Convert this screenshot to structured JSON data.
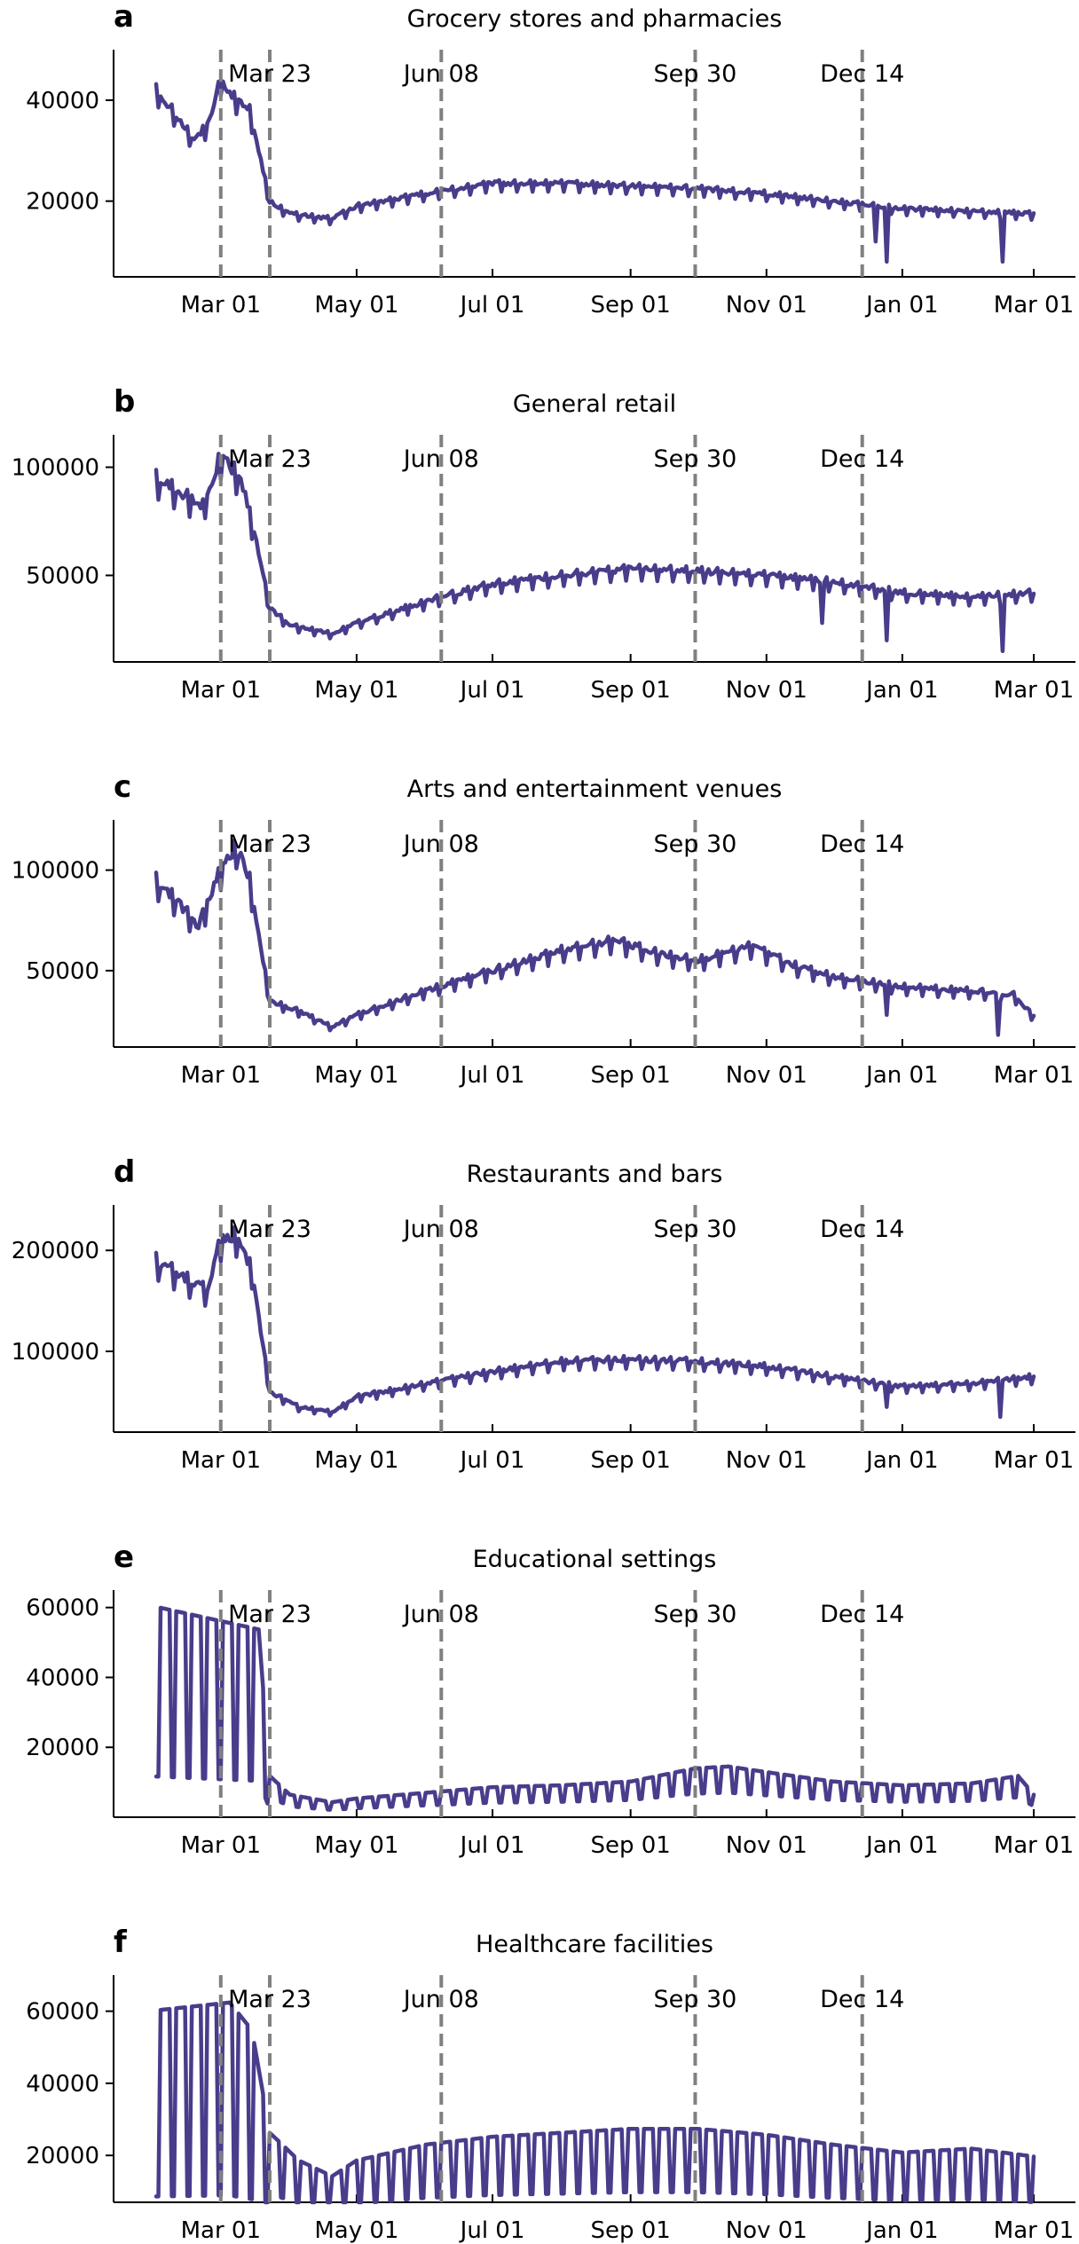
{
  "chart_data": [
    {
      "type": "line",
      "panel": "a",
      "title": "Grocery stores and pharmacies",
      "xlabel": "",
      "ylabel": "",
      "x_range": [
        "2020-02-01",
        "2021-03-01"
      ],
      "x_ticks": [
        "Mar 01",
        "May 01",
        "Jul 01",
        "Sep 01",
        "Nov 01",
        "Jan 01",
        "Mar 01"
      ],
      "x_tick_dates": [
        "2020-03-01",
        "2020-05-01",
        "2020-07-01",
        "2020-09-01",
        "2020-11-01",
        "2021-01-01",
        "2021-03-01"
      ],
      "ylim": [
        5000,
        50000
      ],
      "y_ticks": [
        20000,
        40000
      ],
      "events": [
        {
          "label": "",
          "date": "2020-03-01"
        },
        {
          "label": "Mar 23",
          "date": "2020-03-23"
        },
        {
          "label": "Jun 08",
          "date": "2020-06-08"
        },
        {
          "label": "Sep 30",
          "date": "2020-09-30"
        },
        {
          "label": "Dec 14",
          "date": "2020-12-14"
        }
      ],
      "grid": false,
      "color": "#483d8b",
      "anchors": [
        [
          "2020-02-01",
          42000
        ],
        [
          "2020-02-10",
          37000
        ],
        [
          "2020-02-18",
          32000
        ],
        [
          "2020-02-24",
          35000
        ],
        [
          "2020-03-01",
          44000
        ],
        [
          "2020-03-08",
          40000
        ],
        [
          "2020-03-14",
          38000
        ],
        [
          "2020-03-23",
          20000
        ],
        [
          "2020-04-01",
          17500
        ],
        [
          "2020-04-20",
          16500
        ],
        [
          "2020-05-01",
          19000
        ],
        [
          "2020-06-01",
          21500
        ],
        [
          "2020-07-01",
          23500
        ],
        [
          "2020-08-01",
          23500
        ],
        [
          "2020-09-01",
          23000
        ],
        [
          "2020-10-01",
          22500
        ],
        [
          "2020-11-01",
          21500
        ],
        [
          "2020-12-01",
          20000
        ],
        [
          "2021-01-01",
          18500
        ],
        [
          "2021-02-01",
          18000
        ],
        [
          "2021-03-01",
          17500
        ]
      ],
      "weekly_amplitude": 0.07,
      "dips": [
        [
          "2020-12-25",
          8000
        ],
        [
          "2021-02-15",
          8000
        ],
        [
          "2020-12-20",
          12000
        ]
      ]
    },
    {
      "type": "line",
      "panel": "b",
      "title": "General retail",
      "xlabel": "",
      "ylabel": "",
      "x_range": [
        "2020-02-01",
        "2021-03-01"
      ],
      "x_ticks": [
        "Mar 01",
        "May 01",
        "Jul 01",
        "Sep 01",
        "Nov 01",
        "Jan 01",
        "Mar 01"
      ],
      "x_tick_dates": [
        "2020-03-01",
        "2020-05-01",
        "2020-07-01",
        "2020-09-01",
        "2020-11-01",
        "2021-01-01",
        "2021-03-01"
      ],
      "ylim": [
        10000,
        115000
      ],
      "y_ticks": [
        50000,
        100000
      ],
      "events": [
        {
          "label": "",
          "date": "2020-03-01"
        },
        {
          "label": "Mar 23",
          "date": "2020-03-23"
        },
        {
          "label": "Jun 08",
          "date": "2020-06-08"
        },
        {
          "label": "Sep 30",
          "date": "2020-09-30"
        },
        {
          "label": "Dec 14",
          "date": "2020-12-14"
        }
      ],
      "grid": false,
      "color": "#483d8b",
      "anchors": [
        [
          "2020-02-01",
          95000
        ],
        [
          "2020-02-12",
          88000
        ],
        [
          "2020-02-22",
          82000
        ],
        [
          "2020-03-01",
          105000
        ],
        [
          "2020-03-10",
          95000
        ],
        [
          "2020-03-16",
          70000
        ],
        [
          "2020-03-23",
          35000
        ],
        [
          "2020-04-01",
          27000
        ],
        [
          "2020-04-20",
          23000
        ],
        [
          "2020-05-01",
          28000
        ],
        [
          "2020-05-20",
          34000
        ],
        [
          "2020-06-08",
          40000
        ],
        [
          "2020-07-01",
          46000
        ],
        [
          "2020-08-01",
          50000
        ],
        [
          "2020-09-01",
          53000
        ],
        [
          "2020-10-01",
          52000
        ],
        [
          "2020-11-01",
          50000
        ],
        [
          "2020-12-01",
          47000
        ],
        [
          "2021-01-01",
          42000
        ],
        [
          "2021-02-01",
          40000
        ],
        [
          "2021-03-01",
          42000
        ]
      ],
      "weekly_amplitude": 0.1,
      "dips": [
        [
          "2020-11-26",
          28000
        ],
        [
          "2020-12-25",
          20000
        ],
        [
          "2021-02-15",
          15000
        ]
      ]
    },
    {
      "type": "line",
      "panel": "c",
      "title": "Arts and entertainment venues",
      "xlabel": "",
      "ylabel": "",
      "x_range": [
        "2020-02-01",
        "2021-03-01"
      ],
      "x_ticks": [
        "Mar 01",
        "May 01",
        "Jul 01",
        "Sep 01",
        "Nov 01",
        "Jan 01",
        "Mar 01"
      ],
      "x_tick_dates": [
        "2020-03-01",
        "2020-05-01",
        "2020-07-01",
        "2020-09-01",
        "2020-11-01",
        "2021-01-01",
        "2021-03-01"
      ],
      "ylim": [
        12000,
        125000
      ],
      "y_ticks": [
        50000,
        100000
      ],
      "events": [
        {
          "label": "",
          "date": "2020-03-01"
        },
        {
          "label": "Mar 23",
          "date": "2020-03-23"
        },
        {
          "label": "Jun 08",
          "date": "2020-06-08"
        },
        {
          "label": "Sep 30",
          "date": "2020-09-30"
        },
        {
          "label": "Dec 14",
          "date": "2020-12-14"
        }
      ],
      "grid": false,
      "color": "#483d8b",
      "anchors": [
        [
          "2020-02-01",
          95000
        ],
        [
          "2020-02-10",
          85000
        ],
        [
          "2020-02-20",
          72000
        ],
        [
          "2020-03-01",
          100000
        ],
        [
          "2020-03-08",
          112000
        ],
        [
          "2020-03-14",
          95000
        ],
        [
          "2020-03-23",
          35000
        ],
        [
          "2020-04-05",
          30000
        ],
        [
          "2020-04-20",
          22000
        ],
        [
          "2020-05-01",
          28000
        ],
        [
          "2020-06-01",
          40000
        ],
        [
          "2020-07-01",
          50000
        ],
        [
          "2020-08-01",
          60000
        ],
        [
          "2020-08-25",
          65000
        ],
        [
          "2020-09-15",
          58000
        ],
        [
          "2020-10-01",
          55000
        ],
        [
          "2020-10-25",
          62000
        ],
        [
          "2020-11-15",
          52000
        ],
        [
          "2020-12-01",
          47000
        ],
        [
          "2021-01-01",
          42000
        ],
        [
          "2021-02-01",
          40000
        ],
        [
          "2021-02-20",
          38000
        ],
        [
          "2021-03-01",
          27000
        ]
      ],
      "weekly_amplitude": 0.1,
      "dips": [
        [
          "2021-02-13",
          18000
        ],
        [
          "2020-12-25",
          28000
        ]
      ]
    },
    {
      "type": "line",
      "panel": "d",
      "title": "Restaurants and bars",
      "xlabel": "",
      "ylabel": "",
      "x_range": [
        "2020-02-01",
        "2021-03-01"
      ],
      "x_ticks": [
        "Mar 01",
        "May 01",
        "Jul 01",
        "Sep 01",
        "Nov 01",
        "Jan 01",
        "Mar 01"
      ],
      "x_tick_dates": [
        "2020-03-01",
        "2020-05-01",
        "2020-07-01",
        "2020-09-01",
        "2020-11-01",
        "2021-01-01",
        "2021-03-01"
      ],
      "ylim": [
        20000,
        245000
      ],
      "y_ticks": [
        100000,
        200000
      ],
      "events": [
        {
          "label": "",
          "date": "2020-03-01"
        },
        {
          "label": "Mar 23",
          "date": "2020-03-23"
        },
        {
          "label": "Jun 08",
          "date": "2020-06-08"
        },
        {
          "label": "Sep 30",
          "date": "2020-09-30"
        },
        {
          "label": "Dec 14",
          "date": "2020-12-14"
        }
      ],
      "grid": false,
      "color": "#483d8b",
      "anchors": [
        [
          "2020-02-01",
          190000
        ],
        [
          "2020-02-12",
          175000
        ],
        [
          "2020-02-24",
          160000
        ],
        [
          "2020-03-01",
          210000
        ],
        [
          "2020-03-08",
          215000
        ],
        [
          "2020-03-15",
          180000
        ],
        [
          "2020-03-23",
          60000
        ],
        [
          "2020-04-05",
          45000
        ],
        [
          "2020-04-20",
          40000
        ],
        [
          "2020-05-01",
          55000
        ],
        [
          "2020-06-01",
          68000
        ],
        [
          "2020-07-01",
          80000
        ],
        [
          "2020-08-01",
          90000
        ],
        [
          "2020-09-01",
          92000
        ],
        [
          "2020-10-01",
          90000
        ],
        [
          "2020-11-01",
          85000
        ],
        [
          "2020-12-01",
          75000
        ],
        [
          "2021-01-01",
          65000
        ],
        [
          "2021-02-01",
          68000
        ],
        [
          "2021-03-01",
          75000
        ]
      ],
      "weekly_amplitude": 0.1,
      "dips": [
        [
          "2021-02-14",
          35000
        ],
        [
          "2020-12-25",
          45000
        ]
      ]
    },
    {
      "type": "line",
      "panel": "e",
      "title": "Educational settings",
      "xlabel": "",
      "ylabel": "",
      "x_range": [
        "2020-02-01",
        "2021-03-01"
      ],
      "x_ticks": [
        "Mar 01",
        "May 01",
        "Jul 01",
        "Sep 01",
        "Nov 01",
        "Jan 01",
        "Mar 01"
      ],
      "x_tick_dates": [
        "2020-03-01",
        "2020-05-01",
        "2020-07-01",
        "2020-09-01",
        "2020-11-01",
        "2021-01-01",
        "2021-03-01"
      ],
      "ylim": [
        0,
        65000
      ],
      "y_ticks": [
        20000,
        40000,
        60000
      ],
      "events": [
        {
          "label": "",
          "date": "2020-03-01"
        },
        {
          "label": "Mar 23",
          "date": "2020-03-23"
        },
        {
          "label": "Jun 08",
          "date": "2020-06-08"
        },
        {
          "label": "Sep 30",
          "date": "2020-09-30"
        },
        {
          "label": "Dec 14",
          "date": "2020-12-14"
        }
      ],
      "grid": false,
      "color": "#483d8b",
      "anchors": [
        [
          "2020-02-01",
          56000
        ],
        [
          "2020-03-18",
          50000
        ],
        [
          "2020-03-23",
          11000
        ],
        [
          "2020-04-01",
          6000
        ],
        [
          "2020-04-20",
          4000
        ],
        [
          "2020-05-01",
          5000
        ],
        [
          "2020-06-01",
          6500
        ],
        [
          "2020-07-01",
          8000
        ],
        [
          "2020-08-01",
          8500
        ],
        [
          "2020-09-01",
          9500
        ],
        [
          "2020-09-30",
          13000
        ],
        [
          "2020-10-15",
          13500
        ],
        [
          "2020-11-01",
          12000
        ],
        [
          "2020-12-01",
          9500
        ],
        [
          "2021-01-01",
          8500
        ],
        [
          "2021-02-01",
          9000
        ],
        [
          "2021-02-22",
          11000
        ],
        [
          "2021-03-01",
          6000
        ]
      ],
      "weekly_amplitude": 0.3,
      "school_weekend_drop": true,
      "dips": []
    },
    {
      "type": "line",
      "panel": "f",
      "title": "Healthcare facilities",
      "xlabel": "",
      "ylabel": "",
      "x_range": [
        "2020-02-01",
        "2021-03-01"
      ],
      "x_ticks": [
        "Mar 01",
        "May 01",
        "Jul 01",
        "Sep 01",
        "Nov 01",
        "Jan 01",
        "Mar 01"
      ],
      "x_tick_dates": [
        "2020-03-01",
        "2020-05-01",
        "2020-07-01",
        "2020-09-01",
        "2020-11-01",
        "2021-01-01",
        "2021-03-01"
      ],
      "ylim": [
        7000,
        70000
      ],
      "y_ticks": [
        20000,
        40000,
        60000
      ],
      "events": [
        {
          "label": "",
          "date": "2020-03-01"
        },
        {
          "label": "Mar 23",
          "date": "2020-03-23"
        },
        {
          "label": "Jun 08",
          "date": "2020-06-08"
        },
        {
          "label": "Sep 30",
          "date": "2020-09-30"
        },
        {
          "label": "Dec 14",
          "date": "2020-12-14"
        }
      ],
      "grid": false,
      "color": "#483d8b",
      "anchors": [
        [
          "2020-02-01",
          55000
        ],
        [
          "2020-03-05",
          57000
        ],
        [
          "2020-03-15",
          50000
        ],
        [
          "2020-03-23",
          24000
        ],
        [
          "2020-04-05",
          17000
        ],
        [
          "2020-04-20",
          13000
        ],
        [
          "2020-05-01",
          17000
        ],
        [
          "2020-06-01",
          21000
        ],
        [
          "2020-07-01",
          23000
        ],
        [
          "2020-08-01",
          24000
        ],
        [
          "2020-09-01",
          25000
        ],
        [
          "2020-10-01",
          25000
        ],
        [
          "2020-11-01",
          23500
        ],
        [
          "2020-12-01",
          21000
        ],
        [
          "2021-01-01",
          19000
        ],
        [
          "2021-02-01",
          20000
        ],
        [
          "2021-03-01",
          18000
        ]
      ],
      "weekly_amplitude": 0.38,
      "school_weekend_drop": true,
      "dips": []
    }
  ]
}
